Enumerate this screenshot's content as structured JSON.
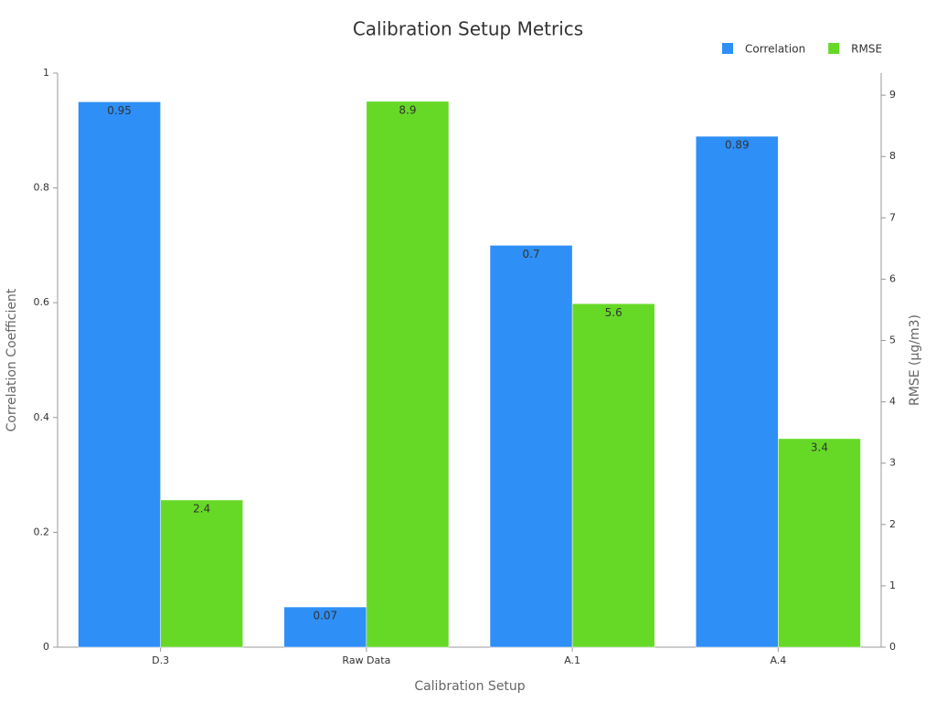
{
  "chart_data": {
    "type": "bar",
    "title": "Calibration Setup Metrics",
    "xlabel": "Calibration Setup",
    "ylabel": "Correlation Coefficient",
    "y2label": "RMSE (µg/m3)",
    "categories": [
      "D.3",
      "Raw Data",
      "A.1",
      "A.4"
    ],
    "series": [
      {
        "name": "Correlation",
        "color": "#2e8ff7",
        "values": [
          0.95,
          0.07,
          0.7,
          0.89
        ]
      },
      {
        "name": "RMSE",
        "color": "#66d926",
        "axis": "y2",
        "values": [
          2.4,
          8.9,
          5.6,
          3.4
        ]
      }
    ],
    "ylim": [
      0,
      1
    ],
    "yticks": [
      0,
      0.2,
      0.4,
      0.6,
      0.8,
      1
    ],
    "y2lim": [
      0,
      9.36
    ],
    "y2ticks": [
      0,
      1,
      2,
      3,
      4,
      5,
      6,
      7,
      8,
      9
    ],
    "legend": "top-right",
    "grid": false
  }
}
